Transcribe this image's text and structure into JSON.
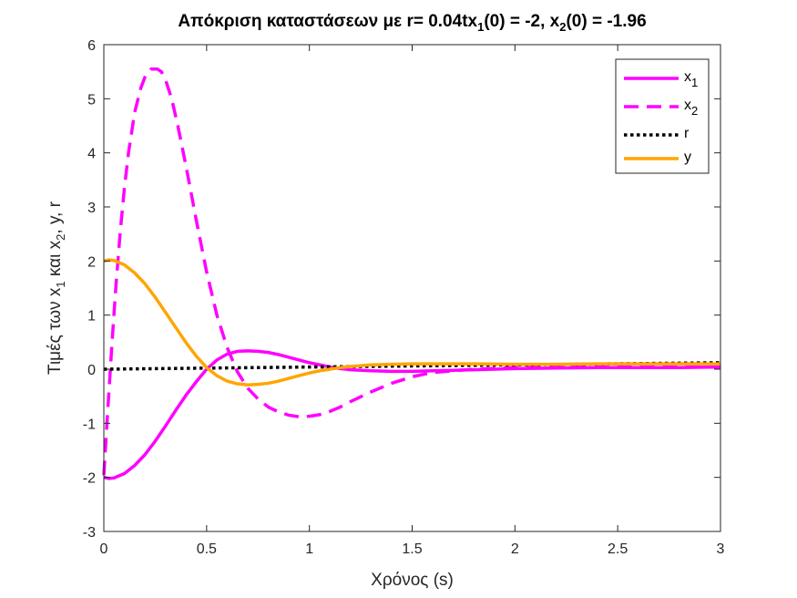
{
  "chart_data": {
    "type": "line",
    "title": "Απόκριση καταστάσεων με r= 0.04tx",
    "title_parts": {
      "a": "Απόκριση καταστάσεων με r= 0.04tx",
      "s1": "1",
      "b": "(0) = -2, x",
      "s2": "2",
      "c": "(0) = -1.96"
    },
    "xlabel": "Χρόνος (s)",
    "ylabel_parts": {
      "a": "Τιμές των x",
      "s1": "1",
      "b": " και x",
      "s2": "2",
      "c": ", y, r"
    },
    "xlim": [
      0,
      3
    ],
    "ylim": [
      -3,
      6
    ],
    "x_ticks": [
      0,
      0.5,
      1,
      1.5,
      2,
      2.5,
      3
    ],
    "x_tick_labels": [
      "0",
      "0.5",
      "1",
      "1.5",
      "2",
      "2.5",
      "3"
    ],
    "y_ticks": [
      -3,
      -2,
      -1,
      0,
      1,
      2,
      3,
      4,
      5,
      6
    ],
    "y_tick_labels": [
      "-3",
      "-2",
      "-1",
      "0",
      "1",
      "2",
      "3",
      "4",
      "5",
      "6"
    ],
    "grid": false,
    "legend_position": "top-right",
    "series": [
      {
        "name": "x",
        "name_sub": "1",
        "color": "#ff00ff",
        "dash": "solid",
        "x": [
          0,
          0.025,
          0.05,
          0.1,
          0.15,
          0.2,
          0.25,
          0.3,
          0.35,
          0.4,
          0.45,
          0.5,
          0.55,
          0.6,
          0.65,
          0.7,
          0.75,
          0.8,
          0.85,
          0.9,
          0.95,
          1.0,
          1.05,
          1.1,
          1.15,
          1.2,
          1.3,
          1.4,
          1.5,
          1.6,
          1.7,
          1.8,
          2.0,
          2.2,
          2.4,
          2.6,
          2.8,
          3.0
        ],
        "values": [
          -2,
          -2.02,
          -2.01,
          -1.93,
          -1.78,
          -1.58,
          -1.33,
          -1.05,
          -0.76,
          -0.48,
          -0.23,
          0.0,
          0.17,
          0.28,
          0.33,
          0.34,
          0.33,
          0.31,
          0.27,
          0.22,
          0.17,
          0.12,
          0.08,
          0.04,
          0.01,
          -0.01,
          -0.03,
          -0.04,
          -0.04,
          -0.03,
          -0.02,
          -0.01,
          0.01,
          0.02,
          0.03,
          0.03,
          0.03,
          0.04
        ]
      },
      {
        "name": "x",
        "name_sub": "2",
        "color": "#ff00ff",
        "dash": "dashed",
        "x": [
          0,
          0.02,
          0.04,
          0.06,
          0.08,
          0.1,
          0.12,
          0.15,
          0.18,
          0.2,
          0.23,
          0.26,
          0.28,
          0.3,
          0.33,
          0.36,
          0.4,
          0.45,
          0.5,
          0.55,
          0.6,
          0.65,
          0.7,
          0.75,
          0.8,
          0.85,
          0.9,
          0.95,
          1.0,
          1.05,
          1.1,
          1.15,
          1.2,
          1.3,
          1.4,
          1.5,
          1.6,
          1.8,
          2.0,
          2.2,
          2.4,
          2.6,
          2.8,
          3.0
        ],
        "values": [
          -1.96,
          -0.7,
          0.5,
          1.6,
          2.55,
          3.35,
          4.0,
          4.75,
          5.2,
          5.4,
          5.55,
          5.55,
          5.5,
          5.35,
          5.0,
          4.5,
          3.75,
          2.75,
          1.8,
          1.0,
          0.4,
          -0.05,
          -0.35,
          -0.55,
          -0.7,
          -0.79,
          -0.85,
          -0.88,
          -0.87,
          -0.84,
          -0.78,
          -0.7,
          -0.6,
          -0.42,
          -0.26,
          -0.14,
          -0.06,
          0.0,
          0.03,
          0.04,
          0.04,
          0.04,
          0.04,
          0.04
        ]
      },
      {
        "name": "r",
        "name_sub": "",
        "color": "#000000",
        "dash": "dotted",
        "x": [
          0,
          3
        ],
        "values": [
          0,
          0.12
        ]
      },
      {
        "name": "y",
        "name_sub": "",
        "color": "#ffa500",
        "dash": "solid",
        "x": [
          0,
          0.025,
          0.05,
          0.1,
          0.15,
          0.2,
          0.25,
          0.3,
          0.35,
          0.4,
          0.45,
          0.5,
          0.55,
          0.6,
          0.65,
          0.7,
          0.75,
          0.8,
          0.85,
          0.9,
          0.95,
          1.0,
          1.05,
          1.1,
          1.15,
          1.2,
          1.3,
          1.4,
          1.5,
          1.6,
          1.7,
          1.8,
          2.0,
          2.2,
          2.4,
          2.6,
          2.8,
          3.0
        ],
        "values": [
          2.0,
          2.02,
          2.01,
          1.93,
          1.78,
          1.58,
          1.33,
          1.05,
          0.77,
          0.49,
          0.24,
          0.03,
          -0.12,
          -0.22,
          -0.27,
          -0.29,
          -0.28,
          -0.26,
          -0.22,
          -0.17,
          -0.12,
          -0.07,
          -0.03,
          0.0,
          0.03,
          0.05,
          0.08,
          0.09,
          0.1,
          0.1,
          0.1,
          0.1,
          0.09,
          0.09,
          0.1,
          0.1,
          0.1,
          0.1
        ]
      }
    ]
  }
}
